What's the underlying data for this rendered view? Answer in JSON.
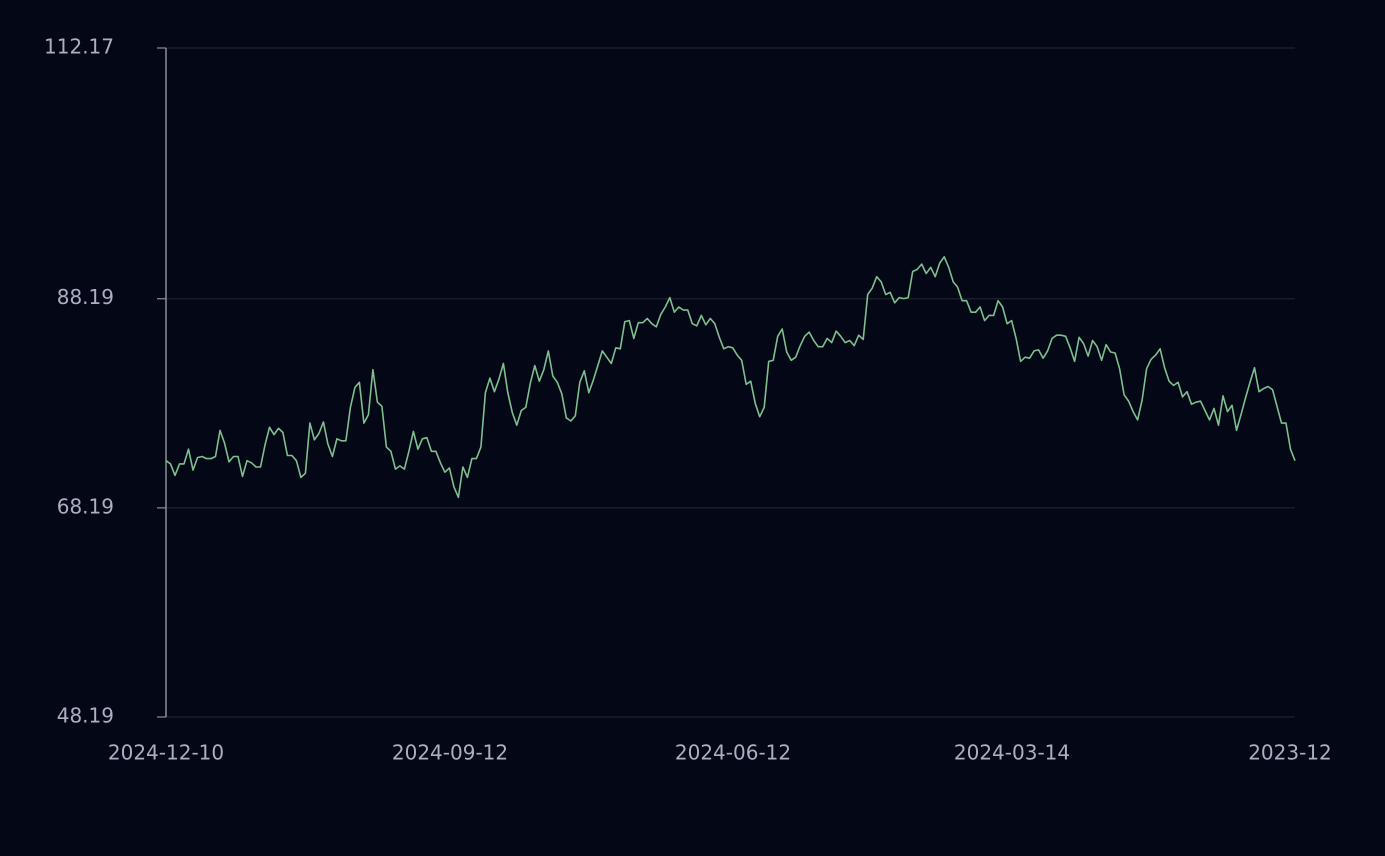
{
  "chart_data": {
    "type": "line",
    "title": "",
    "xlabel": "",
    "ylabel": "",
    "x_axis_direction": "reversed",
    "x_ticks": [
      "2024-12-10",
      "2024-09-12",
      "2024-06-12",
      "2024-03-14",
      "2023-12"
    ],
    "y_ticks": [
      "112.17",
      "88.19",
      "68.19",
      "48.19"
    ],
    "y_tick_values": [
      112.17,
      88.19,
      68.19,
      48.19
    ],
    "ylim": [
      48.19,
      112.17
    ],
    "grid": "horizontal",
    "colors": {
      "background": "#030716",
      "line": "#7fbf8f",
      "grid": "#1e2130",
      "axis": "#8a8f99",
      "tick_label": "#a9b0c2"
    },
    "series": [
      {
        "values": [
          72.7,
          72.4,
          71.3,
          72.4,
          72.4,
          73.8,
          71.8,
          73.0,
          73.1,
          72.9,
          72.9,
          73.1,
          75.6,
          74.4,
          72.6,
          73.1,
          73.1,
          71.2,
          72.7,
          72.5,
          72.1,
          72.1,
          74.2,
          75.9,
          75.2,
          75.8,
          75.4,
          73.2,
          73.2,
          72.7,
          71.1,
          71.5,
          76.3,
          74.7,
          75.3,
          76.4,
          74.3,
          73.1,
          74.8,
          74.6,
          74.6,
          77.8,
          79.7,
          80.2,
          76.3,
          77.1,
          81.4,
          78.3,
          77.9,
          74.0,
          73.6,
          71.9,
          72.2,
          71.9,
          73.6,
          75.5,
          73.8,
          74.8,
          74.9,
          73.6,
          73.6,
          72.5,
          71.6,
          72.0,
          70.2,
          69.2,
          72.1,
          71.1,
          72.9,
          72.9,
          74.0,
          79.2,
          80.6,
          79.3,
          80.5,
          82.0,
          79.2,
          77.3,
          76.1,
          77.5,
          77.8,
          80.1,
          81.8,
          80.3,
          81.4,
          83.2,
          80.8,
          80.2,
          79.1,
          76.8,
          76.5,
          77.0,
          80.2,
          81.3,
          79.2,
          80.4,
          81.8,
          83.2,
          82.6,
          82.0,
          83.5,
          83.4,
          86.0,
          86.1,
          84.4,
          85.9,
          85.9,
          86.3,
          85.8,
          85.5,
          86.7,
          87.4,
          88.3,
          86.9,
          87.4,
          87.1,
          87.1,
          85.8,
          85.6,
          86.6,
          85.7,
          86.3,
          85.8,
          84.5,
          83.4,
          83.6,
          83.5,
          82.8,
          82.3,
          80.0,
          80.3,
          78.2,
          76.9,
          77.8,
          82.2,
          82.3,
          84.6,
          85.3,
          83.1,
          82.3,
          82.6,
          83.7,
          84.6,
          85.0,
          84.2,
          83.6,
          83.6,
          84.4,
          84.0,
          85.1,
          84.6,
          84.0,
          84.2,
          83.7,
          84.7,
          84.3,
          88.6,
          89.2,
          90.3,
          89.8,
          88.6,
          88.8,
          87.8,
          88.3,
          88.2,
          88.3,
          90.8,
          91.0,
          91.5,
          90.6,
          91.2,
          90.3,
          91.6,
          92.2,
          91.2,
          89.8,
          89.3,
          88.0,
          88.0,
          86.9,
          86.9,
          87.4,
          86.1,
          86.6,
          86.6,
          88.0,
          87.4,
          85.8,
          86.1,
          84.4,
          82.2,
          82.6,
          82.5,
          83.2,
          83.3,
          82.5,
          83.2,
          84.4,
          84.7,
          84.7,
          84.6,
          83.5,
          82.2,
          84.5,
          83.9,
          82.7,
          84.2,
          83.6,
          82.3,
          83.8,
          83.1,
          83.0,
          81.5,
          79.0,
          78.4,
          77.4,
          76.6,
          78.5,
          81.5,
          82.4,
          82.8,
          83.4,
          81.6,
          80.3,
          79.9,
          80.2,
          78.8,
          79.3,
          78.1,
          78.3,
          78.4,
          77.5,
          76.6,
          77.7,
          76.1,
          78.9,
          77.4,
          78.0,
          75.6,
          77.1,
          78.7,
          80.2,
          81.6,
          79.3,
          79.6,
          79.8,
          79.5,
          77.9,
          76.3,
          76.3,
          73.8,
          72.7
        ]
      }
    ]
  }
}
